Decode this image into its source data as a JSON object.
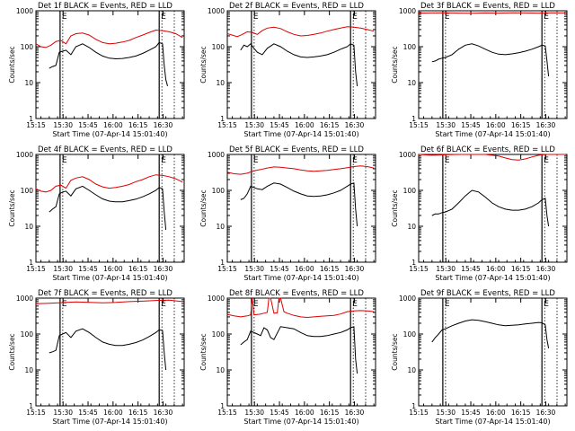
{
  "figure": {
    "ylabel": "Counts/sec",
    "xlabel": "Start Time (07-Apr-14 15:01:40)",
    "x_tick_labels": [
      "15:15",
      "15:30",
      "15:45",
      "16:00",
      "16:15",
      "16:30"
    ],
    "y_tick_labels": [
      "1",
      "10",
      "100",
      "1000"
    ],
    "marker_label": "E",
    "colors": {
      "events": "#000000",
      "lld": "#dd0000"
    }
  },
  "chart_data": [
    {
      "type": "line",
      "title": "Det 1f BLACK = Events, RED = LLD",
      "ylabel": "Counts/sec",
      "xlabel": "Start Time (07-Apr-14 15:01:40)",
      "yscale": "log",
      "ylim": [
        1,
        1000
      ],
      "xlim_min": [
        12.0,
        101.0
      ],
      "markers_min": [
        26.5,
        86.0
      ],
      "marker_labels": [
        "E",
        "E"
      ],
      "series": [
        {
          "name": "Events",
          "color": "#000000",
          "x": [
            20,
            22,
            24,
            26,
            28,
            30,
            33,
            36,
            40,
            44,
            48,
            52,
            56,
            60,
            64,
            68,
            72,
            76,
            80,
            84,
            86,
            88,
            89,
            90,
            91
          ],
          "y": [
            25,
            28,
            30,
            70,
            75,
            80,
            60,
            100,
            120,
            95,
            70,
            55,
            48,
            46,
            47,
            50,
            55,
            65,
            80,
            100,
            130,
            120,
            30,
            12,
            8
          ]
        },
        {
          "name": "LLD",
          "color": "#dd0000",
          "x": [
            12,
            15,
            18,
            21,
            24,
            27,
            30,
            33,
            36,
            40,
            44,
            48,
            52,
            56,
            60,
            64,
            68,
            72,
            76,
            80,
            84,
            88,
            92,
            96,
            100
          ],
          "y": [
            120,
            100,
            95,
            110,
            140,
            150,
            120,
            200,
            230,
            240,
            210,
            160,
            130,
            120,
            125,
            135,
            150,
            180,
            210,
            250,
            290,
            280,
            260,
            230,
            180
          ]
        }
      ]
    },
    {
      "type": "line",
      "title": "Det 2f BLACK = Events, RED = LLD",
      "ylabel": "Counts/sec",
      "xlabel": "Start Time (07-Apr-14 15:01:40)",
      "yscale": "log",
      "ylim": [
        1,
        1000
      ],
      "xlim_min": [
        12.0,
        101.0
      ],
      "markers_min": [
        26.5,
        86.0
      ],
      "marker_labels": [
        "E",
        "E"
      ],
      "series": [
        {
          "name": "Events",
          "color": "#000000",
          "x": [
            20,
            22,
            24,
            26,
            28,
            30,
            33,
            36,
            40,
            44,
            48,
            52,
            56,
            60,
            64,
            68,
            72,
            76,
            80,
            84,
            86,
            88,
            89,
            90
          ],
          "y": [
            80,
            110,
            100,
            120,
            90,
            70,
            60,
            90,
            120,
            100,
            75,
            60,
            52,
            50,
            52,
            55,
            60,
            70,
            85,
            100,
            120,
            110,
            20,
            8
          ]
        },
        {
          "name": "LLD",
          "color": "#dd0000",
          "x": [
            12,
            15,
            18,
            21,
            24,
            27,
            30,
            33,
            36,
            40,
            44,
            48,
            52,
            56,
            60,
            64,
            68,
            72,
            76,
            80,
            84,
            88,
            92,
            96,
            100
          ],
          "y": [
            230,
            210,
            190,
            220,
            260,
            250,
            220,
            280,
            330,
            350,
            320,
            260,
            220,
            200,
            205,
            220,
            240,
            270,
            300,
            330,
            360,
            350,
            330,
            300,
            270
          ]
        }
      ]
    },
    {
      "type": "line",
      "title": "Det 3f BLACK = Events, RED = LLD",
      "ylabel": "Counts/sec",
      "xlabel": "Start Time (07-Apr-14 15:01:40)",
      "yscale": "log",
      "ylim": [
        1,
        1000
      ],
      "xlim_min": [
        12.0,
        101.0
      ],
      "markers_min": [
        26.5,
        86.0
      ],
      "marker_labels": [
        "E",
        "E"
      ],
      "series": [
        {
          "name": "Events",
          "color": "#000000",
          "x": [
            20,
            22,
            24,
            26,
            28,
            32,
            36,
            40,
            44,
            48,
            52,
            56,
            60,
            64,
            68,
            72,
            76,
            80,
            84,
            86,
            88,
            89,
            90
          ],
          "y": [
            38,
            40,
            45,
            48,
            50,
            60,
            85,
            110,
            120,
            105,
            85,
            70,
            62,
            60,
            63,
            68,
            75,
            85,
            100,
            110,
            105,
            40,
            15
          ]
        },
        {
          "name": "LLD",
          "color": "#dd0000",
          "x": [
            12,
            20,
            28,
            36,
            44,
            52,
            60,
            68,
            76,
            84,
            92,
            100
          ],
          "y": [
            860,
            870,
            880,
            860,
            850,
            870,
            860,
            880,
            870,
            860,
            880,
            870
          ]
        }
      ]
    },
    {
      "type": "line",
      "title": "Det 4f BLACK = Events, RED = LLD",
      "ylabel": "Counts/sec",
      "xlabel": "Start Time (07-Apr-14 15:01:40)",
      "yscale": "log",
      "ylim": [
        1,
        1000
      ],
      "xlim_min": [
        12.0,
        101.0
      ],
      "markers_min": [
        26.5,
        86.0
      ],
      "marker_labels": [
        "E",
        "E"
      ],
      "series": [
        {
          "name": "Events",
          "color": "#000000",
          "x": [
            20,
            22,
            24,
            26,
            28,
            30,
            33,
            36,
            40,
            44,
            48,
            52,
            56,
            60,
            64,
            68,
            72,
            76,
            80,
            84,
            86,
            88,
            89,
            90
          ],
          "y": [
            25,
            30,
            35,
            80,
            90,
            95,
            70,
            110,
            130,
            100,
            75,
            58,
            50,
            48,
            48,
            52,
            57,
            66,
            80,
            100,
            120,
            110,
            25,
            8
          ]
        },
        {
          "name": "LLD",
          "color": "#dd0000",
          "x": [
            12,
            15,
            18,
            21,
            24,
            27,
            30,
            33,
            36,
            40,
            44,
            48,
            52,
            56,
            60,
            64,
            68,
            72,
            76,
            80,
            84,
            88,
            92,
            96,
            100
          ],
          "y": [
            110,
            95,
            90,
            100,
            130,
            140,
            115,
            190,
            220,
            240,
            200,
            150,
            125,
            115,
            120,
            130,
            145,
            175,
            200,
            240,
            270,
            260,
            240,
            210,
            170
          ]
        }
      ]
    },
    {
      "type": "line",
      "title": "Det 5f BLACK = Events, RED = LLD",
      "ylabel": "Counts/sec",
      "xlabel": "Start Time (07-Apr-14 15:01:40)",
      "yscale": "log",
      "ylim": [
        1,
        1000
      ],
      "xlim_min": [
        12.0,
        101.0
      ],
      "markers_min": [
        26.5,
        86.0
      ],
      "marker_labels": [
        "E",
        "E"
      ],
      "series": [
        {
          "name": "Events",
          "color": "#000000",
          "x": [
            20,
            22,
            24,
            26,
            28,
            30,
            33,
            36,
            40,
            44,
            48,
            52,
            56,
            60,
            64,
            68,
            72,
            76,
            80,
            84,
            86,
            88,
            89,
            90
          ],
          "y": [
            55,
            60,
            80,
            130,
            120,
            110,
            105,
            130,
            160,
            150,
            120,
            95,
            80,
            70,
            68,
            70,
            75,
            85,
            100,
            130,
            150,
            160,
            30,
            10
          ]
        },
        {
          "name": "LLD",
          "color": "#dd0000",
          "x": [
            12,
            16,
            20,
            24,
            28,
            32,
            36,
            40,
            44,
            48,
            52,
            56,
            60,
            64,
            68,
            72,
            76,
            80,
            84,
            88,
            92,
            96,
            100
          ],
          "y": [
            320,
            290,
            280,
            300,
            350,
            380,
            420,
            450,
            440,
            420,
            400,
            370,
            350,
            340,
            350,
            360,
            380,
            400,
            430,
            460,
            480,
            460,
            420
          ]
        }
      ]
    },
    {
      "type": "line",
      "title": "Det 6f BLACK = Events, RED = LLD",
      "ylabel": "Counts/sec",
      "xlabel": "Start Time (07-Apr-14 15:01:40)",
      "yscale": "log",
      "ylim": [
        1,
        1000
      ],
      "xlim_min": [
        12.0,
        101.0
      ],
      "markers_min": [
        26.5,
        86.0
      ],
      "marker_labels": [
        "E",
        "E"
      ],
      "series": [
        {
          "name": "Events",
          "color": "#000000",
          "x": [
            20,
            22,
            24,
            26,
            28,
            32,
            36,
            40,
            44,
            48,
            52,
            56,
            60,
            64,
            68,
            72,
            76,
            80,
            84,
            86,
            88,
            89,
            90
          ],
          "y": [
            20,
            22,
            22,
            24,
            25,
            30,
            45,
            70,
            100,
            90,
            65,
            45,
            35,
            30,
            28,
            28,
            30,
            35,
            45,
            55,
            60,
            20,
            10
          ]
        },
        {
          "name": "LLD",
          "color": "#dd0000",
          "x": [
            12,
            20,
            28,
            36,
            44,
            52,
            60,
            64,
            68,
            72,
            76,
            80,
            84,
            88,
            92,
            96,
            100
          ],
          "y": [
            1000,
            950,
            980,
            1000,
            1000,
            1000,
            900,
            800,
            720,
            700,
            750,
            850,
            950,
            1000,
            1000,
            1000,
            1000
          ]
        }
      ]
    },
    {
      "type": "line",
      "title": "Det 7f BLACK = Events, RED = LLD",
      "ylabel": "Counts/sec",
      "xlabel": "Start Time (07-Apr-14 15:01:40)",
      "yscale": "log",
      "ylim": [
        1,
        1000
      ],
      "xlim_min": [
        12.0,
        101.0
      ],
      "markers_min": [
        26.5,
        86.0
      ],
      "marker_labels": [
        "E",
        "E"
      ],
      "series": [
        {
          "name": "Events",
          "color": "#000000",
          "x": [
            20,
            22,
            24,
            26,
            28,
            30,
            33,
            36,
            40,
            44,
            48,
            52,
            56,
            60,
            64,
            68,
            72,
            76,
            80,
            84,
            86,
            88,
            89,
            90
          ],
          "y": [
            30,
            32,
            35,
            90,
            100,
            110,
            80,
            120,
            140,
            110,
            80,
            60,
            52,
            48,
            48,
            52,
            58,
            68,
            85,
            110,
            130,
            125,
            30,
            10
          ]
        },
        {
          "name": "LLD",
          "color": "#dd0000",
          "x": [
            12,
            20,
            28,
            36,
            44,
            52,
            60,
            68,
            76,
            84,
            92,
            100
          ],
          "y": [
            700,
            720,
            750,
            780,
            760,
            740,
            760,
            800,
            820,
            860,
            880,
            800
          ]
        }
      ]
    },
    {
      "type": "line",
      "title": "Det 8f BLACK = Events, RED = LLD",
      "ylabel": "Counts/sec",
      "xlabel": "Start Time (07-Apr-14 15:01:40)",
      "yscale": "log",
      "ylim": [
        1,
        1000
      ],
      "xlim_min": [
        12.0,
        101.0
      ],
      "markers_min": [
        26.5,
        86.0
      ],
      "marker_labels": [
        "E",
        "E"
      ],
      "series": [
        {
          "name": "Events",
          "color": "#000000",
          "x": [
            20,
            22,
            24,
            26,
            28,
            30,
            32,
            34,
            36,
            38,
            40,
            44,
            48,
            52,
            56,
            60,
            64,
            68,
            72,
            76,
            80,
            84,
            86,
            88,
            89,
            90
          ],
          "y": [
            50,
            60,
            70,
            120,
            110,
            100,
            90,
            150,
            130,
            80,
            70,
            160,
            150,
            140,
            110,
            90,
            85,
            85,
            90,
            100,
            110,
            130,
            150,
            160,
            20,
            8
          ]
        },
        {
          "name": "LLD",
          "color": "#dd0000",
          "x": [
            12,
            16,
            20,
            24,
            26,
            27,
            28,
            30,
            32,
            34,
            36,
            37,
            38,
            40,
            42,
            43,
            44,
            46,
            48,
            52,
            56,
            60,
            64,
            68,
            72,
            76,
            80,
            84,
            88,
            92,
            96,
            100
          ],
          "y": [
            350,
            320,
            300,
            320,
            340,
            1000,
            340,
            350,
            360,
            380,
            400,
            1000,
            1000,
            380,
            390,
            1000,
            1000,
            420,
            380,
            330,
            300,
            290,
            300,
            310,
            320,
            330,
            360,
            420,
            440,
            450,
            440,
            420
          ]
        }
      ]
    },
    {
      "type": "line",
      "title": "Det 9f BLACK = Events, RED = LLD",
      "ylabel": "Counts/sec",
      "xlabel": "Start Time (07-Apr-14 15:01:40)",
      "yscale": "log",
      "ylim": [
        1,
        1000
      ],
      "xlim_min": [
        12.0,
        101.0
      ],
      "markers_min": [
        26.5,
        86.0
      ],
      "marker_labels": [
        "E",
        "E"
      ],
      "series": [
        {
          "name": "Events",
          "color": "#000000",
          "x": [
            20,
            22,
            24,
            26,
            28,
            32,
            36,
            40,
            44,
            48,
            52,
            56,
            60,
            64,
            68,
            72,
            76,
            80,
            84,
            86,
            88,
            89,
            90
          ],
          "y": [
            60,
            80,
            100,
            130,
            140,
            170,
            200,
            230,
            250,
            240,
            220,
            200,
            180,
            170,
            175,
            180,
            190,
            200,
            210,
            205,
            180,
            70,
            40
          ]
        }
      ]
    }
  ]
}
